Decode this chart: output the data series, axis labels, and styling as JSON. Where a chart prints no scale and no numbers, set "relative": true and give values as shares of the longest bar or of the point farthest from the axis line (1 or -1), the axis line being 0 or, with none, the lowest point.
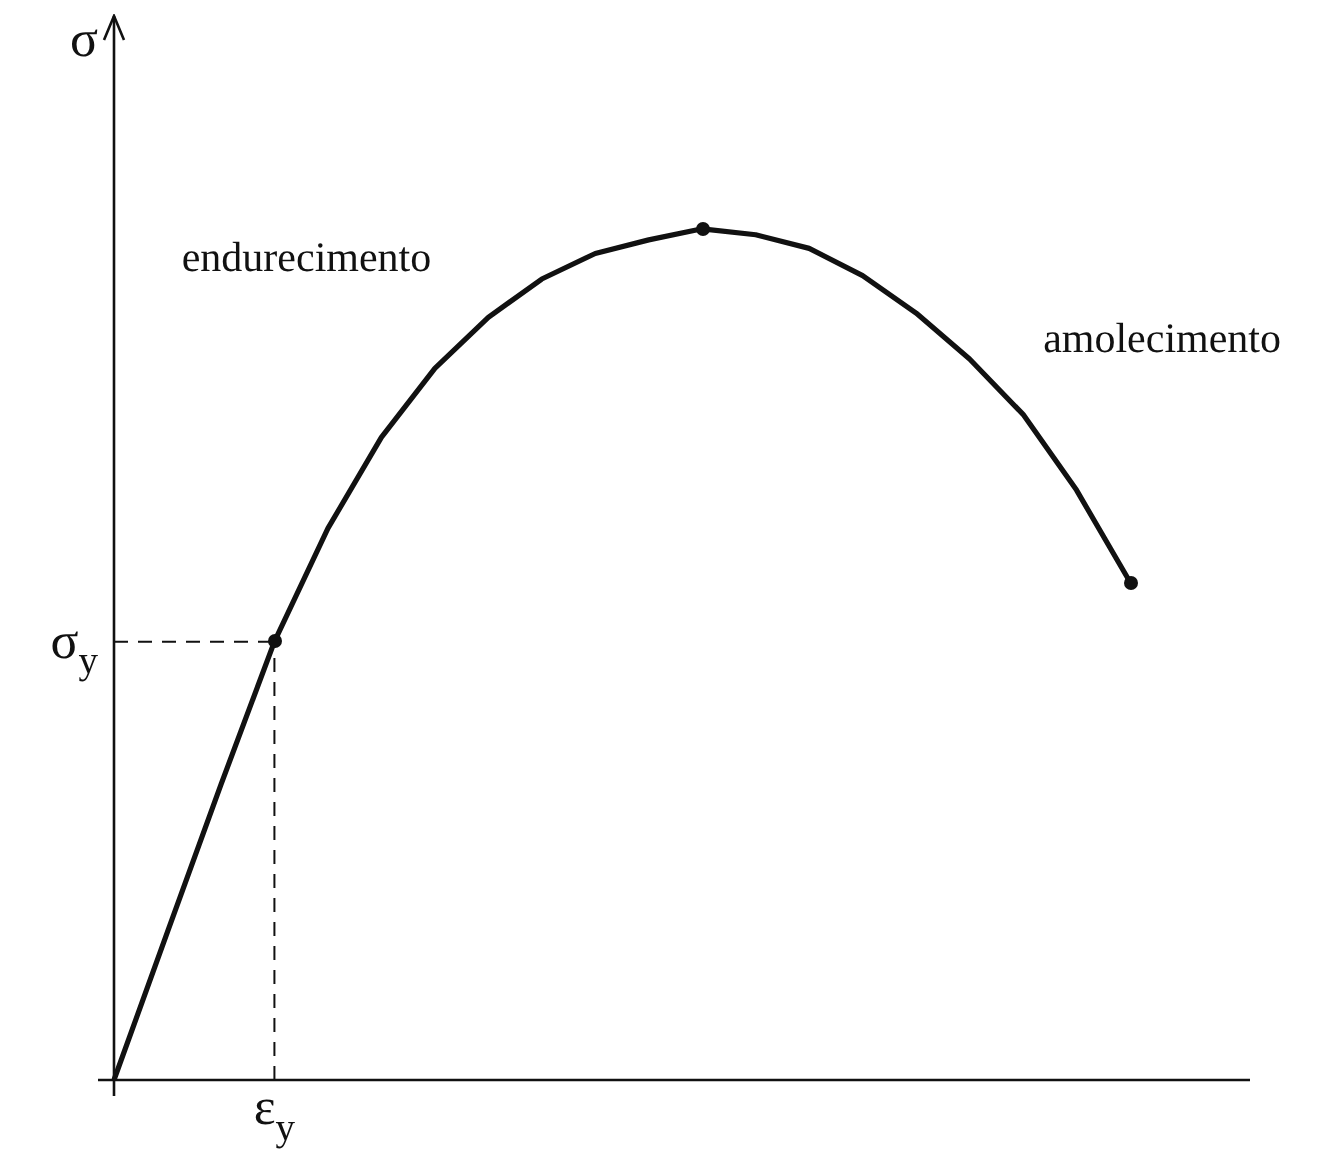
{
  "chart_data": {
    "type": "line",
    "relative": true,
    "ylabel": "σ",
    "legend": false,
    "categories": [
      null,
      null,
      null,
      null,
      null,
      null,
      null,
      null,
      null,
      null,
      null,
      null,
      null,
      null,
      null,
      null,
      null,
      null,
      null,
      null
    ],
    "series": [
      {
        "color": "#111111",
        "values": [
          0,
          0.174,
          0.347,
          0.515,
          0.648,
          0.755,
          0.836,
          0.896,
          0.941,
          0.971,
          0.987,
          1,
          0.993,
          0.977,
          0.945,
          0.901,
          0.847,
          0.782,
          0.693,
          0.585
        ]
      }
    ],
    "annotations": [
      "endurecimento",
      "amolecimento",
      "σ$_{y}$",
      "ε$_{y}$"
    ]
  }
}
